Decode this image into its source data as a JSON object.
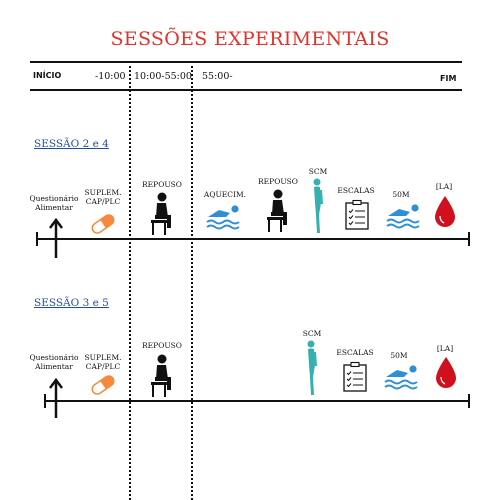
{
  "title": "SESSÕES EXPERIMENTAIS",
  "timeline": {
    "start": "INÍCIO",
    "end": "FIM",
    "segments": [
      "-10:00",
      "10:00-55:00",
      "55:00-"
    ]
  },
  "sessions": [
    {
      "title": "SESSÃO 2 e 4",
      "labels": {
        "questionnaire": "Questionário\nAlimentar",
        "supplement": "SUPLEM.\nCAP/PLC",
        "rest1": "REPOUSO",
        "warmup": "AQUECIM.",
        "rest2": "REPOUSO",
        "scm": "SCM",
        "scales": "ESCALAS",
        "swim": "50M",
        "lactate": "[LA]"
      }
    },
    {
      "title": "SESSÃO 3 e 5",
      "labels": {
        "questionnaire": "Questionário\nAlimentar",
        "supplement": "SUPLEM.\nCAP/PLC",
        "rest1": "REPOUSO",
        "scm": "SCM",
        "scales": "ESCALAS",
        "swim": "50M",
        "lactate": "[LA]"
      }
    }
  ],
  "colors": {
    "title": "#e0332b",
    "session_title": "#1f4e9c",
    "pill": "#f58a3c",
    "swim": "#2f8fd6",
    "scm": "#35b0b0",
    "drop": "#d0101c"
  },
  "icons": [
    "arrow-up-icon",
    "pill-icon",
    "seated-person-icon",
    "swimmer-icon",
    "standing-body-icon",
    "checklist-icon",
    "blood-drop-icon"
  ]
}
